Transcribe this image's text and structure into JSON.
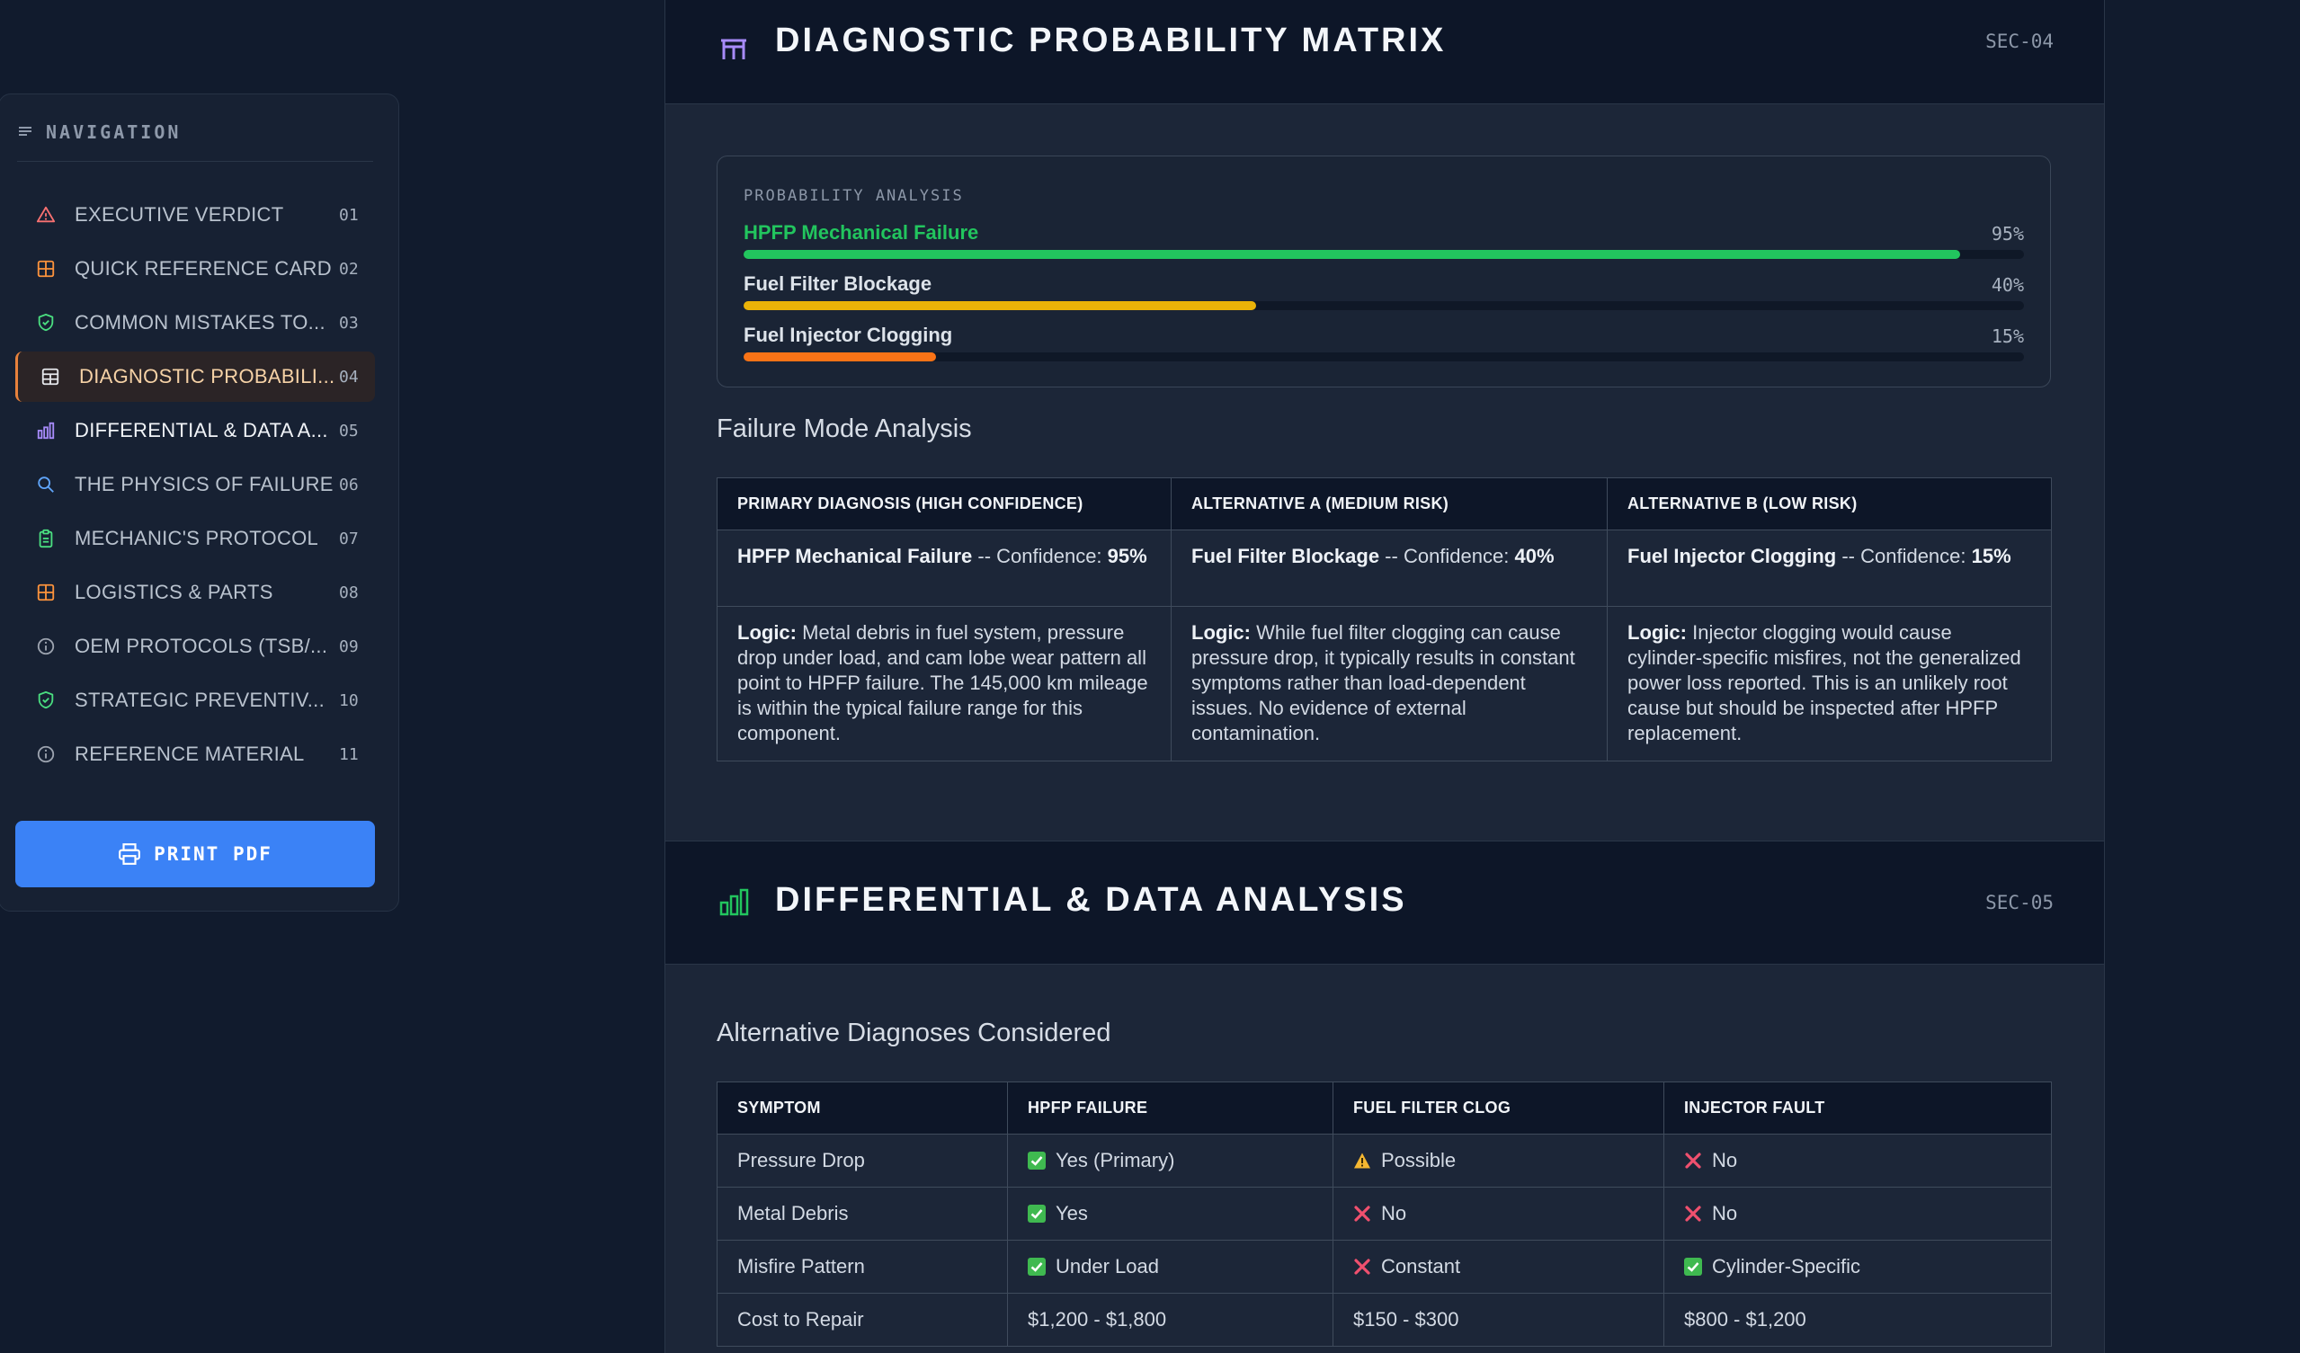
{
  "sidebar": {
    "header": "NAVIGATION",
    "items": [
      {
        "label": "EXECUTIVE VERDICT",
        "num": "01",
        "icon": "alert-triangle-icon",
        "color": "#f87171"
      },
      {
        "label": "QUICK REFERENCE CARD",
        "num": "02",
        "icon": "grid-icon",
        "color": "#fb923c"
      },
      {
        "label": "COMMON MISTAKES TO...",
        "num": "03",
        "icon": "shield-check-icon",
        "color": "#4ade80"
      },
      {
        "label": "DIAGNOSTIC PROBABILI...",
        "num": "04",
        "icon": "table-icon",
        "color": "#e5e7eb"
      },
      {
        "label": "DIFFERENTIAL & DATA A...",
        "num": "05",
        "icon": "bar-chart-icon",
        "color": "#a78bfa"
      },
      {
        "label": "THE PHYSICS OF FAILURE",
        "num": "06",
        "icon": "search-icon",
        "color": "#60a5fa"
      },
      {
        "label": "MECHANIC'S PROTOCOL",
        "num": "07",
        "icon": "clipboard-icon",
        "color": "#4ade80"
      },
      {
        "label": "LOGISTICS & PARTS",
        "num": "08",
        "icon": "grid-icon",
        "color": "#fb923c"
      },
      {
        "label": "OEM PROTOCOLS (TSB/...",
        "num": "09",
        "icon": "info-icon",
        "color": "#9ca3af"
      },
      {
        "label": "STRATEGIC PREVENTIV...",
        "num": "10",
        "icon": "shield-check-icon",
        "color": "#4ade80"
      },
      {
        "label": "REFERENCE MATERIAL",
        "num": "11",
        "icon": "info-icon",
        "color": "#9ca3af"
      }
    ],
    "print_label": "PRINT PDF"
  },
  "sec04": {
    "title": "DIAGNOSTIC PROBABILITY MATRIX",
    "code": "SEC-04",
    "prob_title": "PROBABILITY ANALYSIS",
    "prob": [
      {
        "label": "HPFP Mechanical Failure",
        "pct": "95%",
        "value": 0.95,
        "color": "#22c55e"
      },
      {
        "label": "Fuel Filter Blockage",
        "pct": "40%",
        "value": 0.4,
        "color": "#eab308"
      },
      {
        "label": "Fuel Injector Clogging",
        "pct": "15%",
        "value": 0.15,
        "color": "#f97316"
      }
    ],
    "subheading": "Failure Mode Analysis",
    "table": {
      "headers": [
        "PRIMARY DIAGNOSIS (HIGH CONFIDENCE)",
        "ALTERNATIVE A (MEDIUM RISK)",
        "ALTERNATIVE B (LOW RISK)"
      ],
      "confidence": [
        {
          "name": "HPFP Mechanical Failure",
          "text": " -- Confidence: ",
          "value": "95%"
        },
        {
          "name": "Fuel Filter Blockage",
          "text": " -- Confidence: ",
          "value": "40%"
        },
        {
          "name": "Fuel Injector Clogging",
          "text": " -- Confidence: ",
          "value": "15%"
        }
      ],
      "logic_label": "Logic:",
      "logic": [
        " Metal debris in fuel system, pressure drop under load, and cam lobe wear pattern all point to HPFP failure. The 145,000 km mileage is within the typical failure range for this component.",
        " While fuel filter clogging can cause pressure drop, it typically results in constant symptoms rather than load-dependent issues. No evidence of external contamination.",
        " Injector clogging would cause cylinder-specific misfires, not the generalized power loss reported. This is an unlikely root cause but should be inspected after HPFP replacement."
      ]
    }
  },
  "sec05": {
    "title": "DIFFERENTIAL & DATA ANALYSIS",
    "code": "SEC-05",
    "subheading": "Alternative Diagnoses Considered",
    "headers": [
      "SYMPTOM",
      "HPFP FAILURE",
      "FUEL FILTER CLOG",
      "INJECTOR FAULT"
    ],
    "rows": [
      {
        "symptom": "Pressure Drop",
        "cells": [
          {
            "mark": "check",
            "text": "Yes (Primary)"
          },
          {
            "mark": "warn",
            "text": "Possible"
          },
          {
            "mark": "cross",
            "text": "No"
          }
        ]
      },
      {
        "symptom": "Metal Debris",
        "cells": [
          {
            "mark": "check",
            "text": "Yes"
          },
          {
            "mark": "cross",
            "text": "No"
          },
          {
            "mark": "cross",
            "text": "No"
          }
        ]
      },
      {
        "symptom": "Misfire Pattern",
        "cells": [
          {
            "mark": "check",
            "text": "Under Load"
          },
          {
            "mark": "cross",
            "text": "Constant"
          },
          {
            "mark": "check",
            "text": "Cylinder-Specific"
          }
        ]
      },
      {
        "symptom": "Cost to Repair",
        "cells": [
          {
            "mark": "",
            "text": "$1,200 - $1,800"
          },
          {
            "mark": "",
            "text": "$150 - $300"
          },
          {
            "mark": "",
            "text": "$800 - $1,200"
          }
        ]
      }
    ]
  },
  "colors": {
    "accent": "#3b82f6",
    "active": "#e8823c",
    "bg": "#111b2d"
  }
}
